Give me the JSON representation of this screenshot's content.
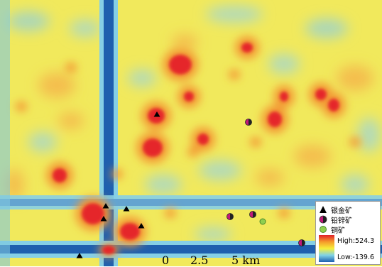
{
  "legend": {
    "entries": [
      {
        "label": "银金矿",
        "icon": "triangle-icon",
        "color": "#000000"
      },
      {
        "label": "铅锌矿",
        "icon": "half-circle-icon",
        "color": "#c2187a"
      },
      {
        "label": "铜矿",
        "icon": "circle-icon",
        "color": "#8fcf4f"
      }
    ],
    "ramp": {
      "high_label": "High:524.3",
      "low_label": "Low:-139.6",
      "high_color": "#e0202a",
      "low_color": "#1c5fb0"
    }
  },
  "scale_bar": {
    "ticks": [
      "0",
      "2.5",
      "5 km"
    ]
  },
  "colors": {
    "background": "#f3ec5a",
    "trough": "#1f5fae",
    "halo": "#88d0e8",
    "anomaly": "#e5262b"
  },
  "deposits": {
    "silver_gold": [
      [
        221,
        161
      ],
      [
        149,
        290
      ],
      [
        178,
        294
      ],
      [
        146,
        308
      ],
      [
        199,
        318
      ],
      [
        112,
        360
      ]
    ],
    "lead_zinc": [
      [
        350,
        172
      ],
      [
        324,
        305
      ],
      [
        356,
        302
      ],
      [
        425,
        342
      ]
    ],
    "copper": [
      [
        370,
        312
      ]
    ]
  },
  "anomalies": [
    [
      254,
      91
    ],
    [
      348,
      67
    ],
    [
      220,
      163
    ],
    [
      215,
      208
    ],
    [
      286,
      196
    ],
    [
      387,
      168
    ],
    [
      452,
      133
    ],
    [
      470,
      148
    ],
    [
      84,
      247
    ],
    [
      131,
      301
    ],
    [
      183,
      326
    ],
    [
      266,
      136
    ],
    [
      400,
      136
    ]
  ]
}
